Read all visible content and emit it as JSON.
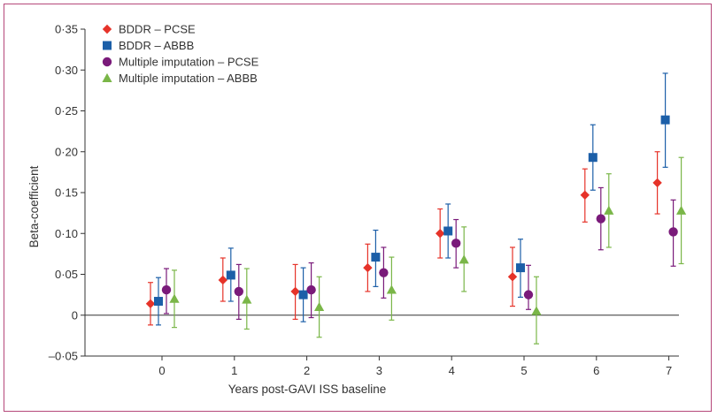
{
  "chart_data": {
    "type": "scatter",
    "subtype": "point-estimate-with-error-bars",
    "xlabel": "Years post-GAVI ISS baseline",
    "ylabel": "Beta-coefficient",
    "categories": [
      "0",
      "1",
      "2",
      "3",
      "4",
      "5",
      "6",
      "7"
    ],
    "ylim": [
      -0.05,
      0.35
    ],
    "yticks": [
      -0.05,
      0,
      0.05,
      0.1,
      0.15,
      0.2,
      0.25,
      0.3,
      0.35
    ],
    "ytick_labels": [
      "–0·05",
      "0",
      "0·05",
      "0·10",
      "0·15",
      "0·20",
      "0·25",
      "0·30",
      "0·35"
    ],
    "zero_line": true,
    "grid": false,
    "legend_position": "top-left",
    "series": [
      {
        "name": "BDDR – PCSE",
        "marker": "diamond",
        "color": "#e63329",
        "values": [
          0.014,
          0.043,
          0.029,
          0.058,
          0.1,
          0.047,
          0.147,
          0.162
        ],
        "lower": [
          -0.012,
          0.017,
          -0.005,
          0.029,
          0.07,
          0.011,
          0.114,
          0.124
        ],
        "upper": [
          0.04,
          0.07,
          0.062,
          0.087,
          0.13,
          0.083,
          0.179,
          0.2
        ]
      },
      {
        "name": "BDDR – ABBB",
        "marker": "square",
        "color": "#1c5fa8",
        "values": [
          0.017,
          0.049,
          0.025,
          0.071,
          0.103,
          0.058,
          0.193,
          0.239
        ],
        "lower": [
          -0.012,
          0.017,
          -0.008,
          0.035,
          0.07,
          0.022,
          0.153,
          0.181
        ],
        "upper": [
          0.046,
          0.082,
          0.058,
          0.104,
          0.136,
          0.093,
          0.233,
          0.296
        ]
      },
      {
        "name": "Multiple imputation – PCSE",
        "marker": "circle",
        "color": "#7a1a7a",
        "values": [
          0.031,
          0.029,
          0.031,
          0.052,
          0.088,
          0.025,
          0.118,
          0.102
        ],
        "lower": [
          0.002,
          -0.005,
          -0.003,
          0.021,
          0.058,
          0.007,
          0.08,
          0.06
        ],
        "upper": [
          0.057,
          0.062,
          0.064,
          0.083,
          0.117,
          0.061,
          0.156,
          0.141
        ]
      },
      {
        "name": "Multiple imputation – ABBB",
        "marker": "triangle",
        "color": "#7ab648",
        "values": [
          0.02,
          0.019,
          0.01,
          0.031,
          0.068,
          0.005,
          0.128,
          0.128
        ],
        "lower": [
          -0.015,
          -0.017,
          -0.027,
          -0.006,
          0.029,
          -0.035,
          0.083,
          0.063
        ],
        "upper": [
          0.055,
          0.057,
          0.047,
          0.071,
          0.108,
          0.047,
          0.173,
          0.193
        ]
      }
    ]
  }
}
